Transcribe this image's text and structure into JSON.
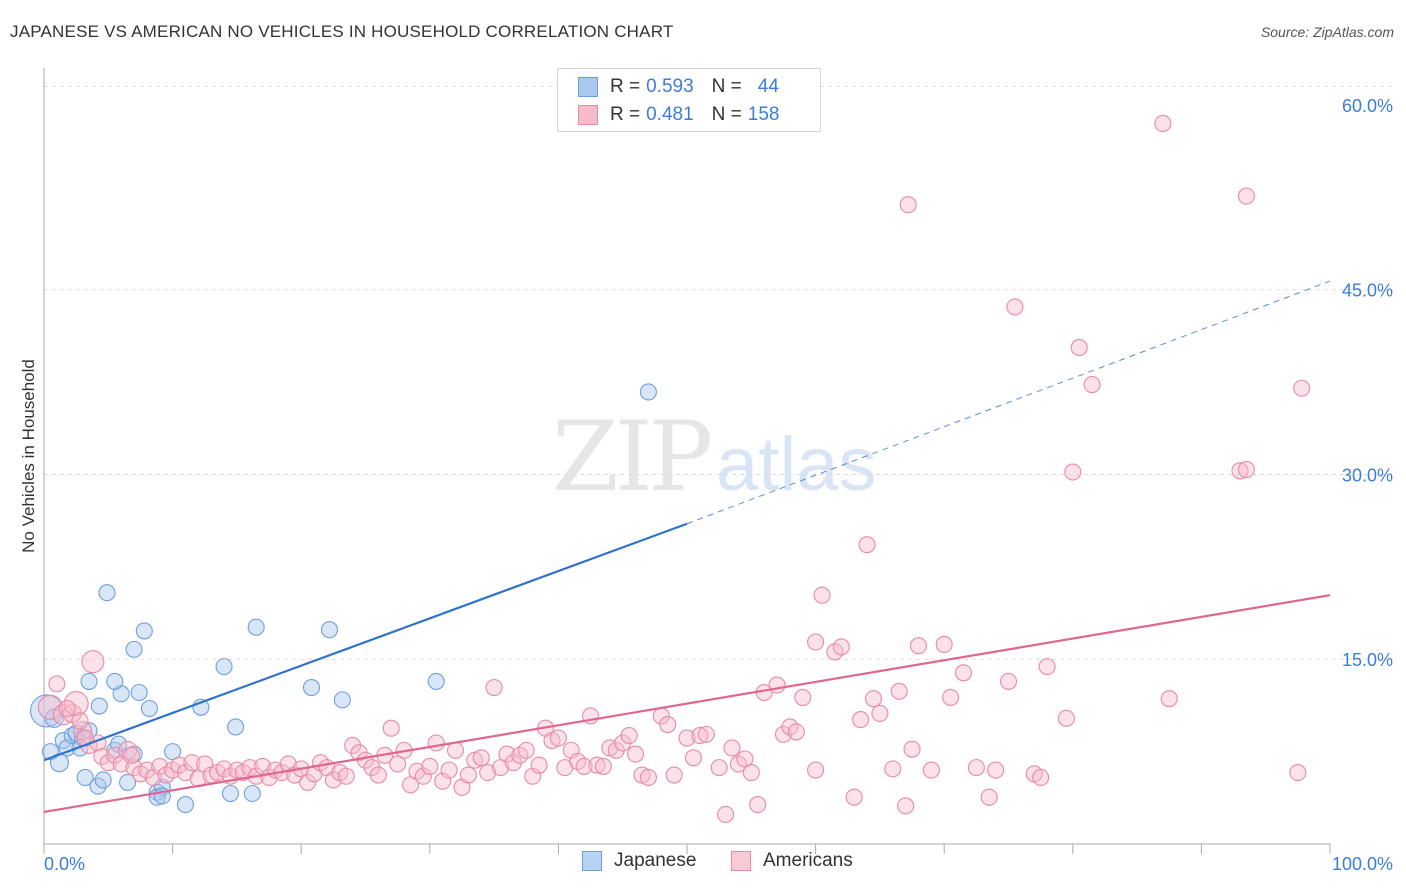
{
  "header": {
    "title": "JAPANESE VS AMERICAN NO VEHICLES IN HOUSEHOLD CORRELATION CHART",
    "source": "Source: ZipAtlas.com"
  },
  "watermark": {
    "zip": "ZIP",
    "atlas": "atlas"
  },
  "legend": {
    "rows": [
      {
        "r_label": "R =",
        "r_value": "0.593",
        "n_label": "N =",
        "n_value": "44",
        "color": "#aac8ee",
        "border": "#6f9fdb"
      },
      {
        "r_label": "R =",
        "r_value": "0.481",
        "n_label": "N =",
        "n_value": "158",
        "color": "#f7bccc",
        "border": "#e88aa6"
      }
    ]
  },
  "bottom_legend": {
    "items": [
      {
        "label": "Japanese",
        "color": "#b7d2f2",
        "border": "#6f9fdb"
      },
      {
        "label": "Americans",
        "color": "#f9c9d6",
        "border": "#e88aa6"
      }
    ]
  },
  "chart_data": {
    "type": "scatter",
    "title": "JAPANESE VS AMERICAN NO VEHICLES IN HOUSEHOLD CORRELATION CHART",
    "xlabel": "",
    "ylabel": "No Vehicles in Household",
    "xlim": [
      0,
      100
    ],
    "ylim": [
      0,
      63
    ],
    "x_tick_labels": [
      "0.0%",
      "100.0%"
    ],
    "y_ticks": [
      15,
      30,
      45,
      60
    ],
    "y_tick_labels": [
      "15.0%",
      "30.0%",
      "45.0%",
      "60.0%"
    ],
    "grid": true,
    "legend_position": "top-center",
    "series": [
      {
        "name": "Japanese",
        "color": "#6f9fdb",
        "fill": "#aac8ee",
        "trend": {
          "x1": 0,
          "y1": 6.8,
          "x2": 50,
          "y2": 26.0,
          "dash_to_x": 100,
          "dash_to_y": 45.7,
          "color": "#2f72cc"
        },
        "points": [
          [
            0.2,
            10.8,
            16
          ],
          [
            0.8,
            10.2,
            9
          ],
          [
            1.2,
            6.6,
            9
          ],
          [
            0.5,
            7.5,
            8
          ],
          [
            1.5,
            8.4,
            8
          ],
          [
            1.8,
            7.8,
            8
          ],
          [
            2.2,
            8.8,
            8
          ],
          [
            2.5,
            9.0,
            8
          ],
          [
            2.8,
            7.8,
            8
          ],
          [
            3.0,
            8.6,
            8
          ],
          [
            3.5,
            9.2,
            8
          ],
          [
            3.2,
            5.4,
            8
          ],
          [
            4.2,
            4.7,
            8
          ],
          [
            4.6,
            5.2,
            8
          ],
          [
            4.3,
            11.2,
            8
          ],
          [
            3.5,
            13.2,
            8
          ],
          [
            4.9,
            20.4,
            8
          ],
          [
            5.5,
            7.6,
            8
          ],
          [
            5.8,
            8.1,
            8
          ],
          [
            6.0,
            12.2,
            8
          ],
          [
            6.5,
            5.0,
            8
          ],
          [
            7.0,
            7.3,
            8
          ],
          [
            7.4,
            12.3,
            8
          ],
          [
            7.8,
            17.3,
            8
          ],
          [
            8.2,
            11.0,
            8
          ],
          [
            8.8,
            4.2,
            8
          ],
          [
            9.2,
            4.6,
            8
          ],
          [
            10.0,
            7.5,
            8
          ],
          [
            11.0,
            3.2,
            8
          ],
          [
            12.2,
            11.1,
            8
          ],
          [
            14.0,
            14.4,
            8
          ],
          [
            14.5,
            4.1,
            8
          ],
          [
            14.9,
            9.5,
            8
          ],
          [
            16.5,
            17.6,
            8
          ],
          [
            16.2,
            4.1,
            8
          ],
          [
            20.8,
            12.7,
            8
          ],
          [
            22.2,
            17.4,
            8
          ],
          [
            23.2,
            11.7,
            8
          ],
          [
            30.5,
            13.2,
            8
          ],
          [
            47.0,
            36.7,
            8
          ],
          [
            7.0,
            15.8,
            8
          ],
          [
            5.5,
            13.2,
            8
          ],
          [
            8.8,
            3.8,
            8
          ],
          [
            9.2,
            3.9,
            8
          ]
        ]
      },
      {
        "name": "Americans",
        "color": "#e88aa6",
        "fill": "#f7bccc",
        "trend": {
          "x1": 0,
          "y1": 2.6,
          "x2": 100,
          "y2": 20.2,
          "color": "#e06690"
        },
        "points": [
          [
            0.5,
            11.1,
            12
          ],
          [
            1.0,
            13.0,
            8
          ],
          [
            1.5,
            10.5,
            10
          ],
          [
            2.2,
            10.6,
            9
          ],
          [
            2.5,
            11.4,
            12
          ],
          [
            3.0,
            9.2,
            9
          ],
          [
            3.5,
            8.0,
            8
          ],
          [
            3.8,
            14.8,
            11
          ],
          [
            4.2,
            8.2,
            8
          ],
          [
            4.5,
            7.1,
            8
          ],
          [
            5.0,
            6.6,
            8
          ],
          [
            5.5,
            7.2,
            8
          ],
          [
            6.0,
            6.5,
            8
          ],
          [
            6.5,
            7.6,
            9
          ],
          [
            7.0,
            6.2,
            8
          ],
          [
            7.5,
            5.7,
            8
          ],
          [
            8.0,
            6.0,
            8
          ],
          [
            8.5,
            5.4,
            8
          ],
          [
            9.0,
            6.3,
            8
          ],
          [
            9.5,
            5.6,
            8
          ],
          [
            10.0,
            6.0,
            8
          ],
          [
            10.5,
            6.4,
            8
          ],
          [
            11.0,
            5.8,
            8
          ],
          [
            11.5,
            6.6,
            8
          ],
          [
            12.0,
            5.3,
            8
          ],
          [
            12.5,
            6.5,
            8
          ],
          [
            13.0,
            5.6,
            8
          ],
          [
            13.5,
            5.8,
            8
          ],
          [
            14.0,
            6.1,
            8
          ],
          [
            14.5,
            5.5,
            8
          ],
          [
            15.0,
            6.0,
            8
          ],
          [
            15.5,
            5.8,
            8
          ],
          [
            16.0,
            6.2,
            8
          ],
          [
            16.5,
            5.5,
            8
          ],
          [
            17.0,
            6.3,
            8
          ],
          [
            17.5,
            5.4,
            8
          ],
          [
            18.0,
            6.0,
            8
          ],
          [
            18.5,
            5.8,
            8
          ],
          [
            19.0,
            6.5,
            8
          ],
          [
            19.5,
            5.6,
            8
          ],
          [
            20.0,
            6.1,
            8
          ],
          [
            20.5,
            5.0,
            8
          ],
          [
            21.0,
            5.7,
            8
          ],
          [
            21.5,
            6.6,
            8
          ],
          [
            22.0,
            6.2,
            8
          ],
          [
            22.5,
            5.2,
            8
          ],
          [
            23.0,
            5.8,
            8
          ],
          [
            23.5,
            5.5,
            8
          ],
          [
            24.0,
            8.0,
            8
          ],
          [
            24.5,
            7.4,
            8
          ],
          [
            25.0,
            6.8,
            8
          ],
          [
            25.5,
            6.2,
            8
          ],
          [
            26.0,
            5.6,
            8
          ],
          [
            26.5,
            7.2,
            8
          ],
          [
            27.0,
            9.4,
            8
          ],
          [
            27.5,
            6.5,
            8
          ],
          [
            28.0,
            7.6,
            8
          ],
          [
            28.5,
            4.8,
            8
          ],
          [
            29.0,
            5.9,
            8
          ],
          [
            29.5,
            5.5,
            8
          ],
          [
            30.0,
            6.3,
            8
          ],
          [
            30.5,
            8.2,
            8
          ],
          [
            31.0,
            5.1,
            8
          ],
          [
            31.5,
            6.0,
            8
          ],
          [
            32.0,
            7.6,
            8
          ],
          [
            32.5,
            4.6,
            8
          ],
          [
            33.0,
            5.6,
            8
          ],
          [
            33.5,
            6.8,
            8
          ],
          [
            34.0,
            7.0,
            8
          ],
          [
            34.5,
            5.8,
            8
          ],
          [
            35.0,
            12.7,
            8
          ],
          [
            35.5,
            6.2,
            8
          ],
          [
            36.0,
            7.3,
            8
          ],
          [
            36.5,
            6.6,
            8
          ],
          [
            37.0,
            7.2,
            8
          ],
          [
            37.5,
            7.6,
            8
          ],
          [
            38.0,
            5.5,
            8
          ],
          [
            38.5,
            6.4,
            8
          ],
          [
            39.0,
            9.4,
            8
          ],
          [
            39.5,
            8.4,
            8
          ],
          [
            40.0,
            8.6,
            8
          ],
          [
            40.5,
            6.2,
            8
          ],
          [
            41.0,
            7.6,
            8
          ],
          [
            41.5,
            6.7,
            8
          ],
          [
            42.0,
            6.3,
            8
          ],
          [
            42.5,
            10.4,
            8
          ],
          [
            43.0,
            6.4,
            8
          ],
          [
            43.5,
            6.3,
            8
          ],
          [
            44.0,
            7.8,
            8
          ],
          [
            44.5,
            7.6,
            8
          ],
          [
            45.0,
            8.2,
            8
          ],
          [
            45.5,
            8.8,
            8
          ],
          [
            46.0,
            7.3,
            8
          ],
          [
            46.5,
            5.6,
            8
          ],
          [
            47.0,
            5.4,
            8
          ],
          [
            48.0,
            10.4,
            8
          ],
          [
            48.5,
            9.7,
            8
          ],
          [
            49.0,
            5.6,
            8
          ],
          [
            50.0,
            8.6,
            8
          ],
          [
            50.5,
            7.0,
            8
          ],
          [
            51.0,
            8.8,
            8
          ],
          [
            51.5,
            8.9,
            8
          ],
          [
            52.5,
            6.2,
            8
          ],
          [
            53.0,
            2.4,
            8
          ],
          [
            53.5,
            7.8,
            8
          ],
          [
            54.0,
            6.5,
            8
          ],
          [
            54.5,
            6.9,
            8
          ],
          [
            55.0,
            5.8,
            8
          ],
          [
            55.5,
            3.2,
            8
          ],
          [
            56.0,
            12.3,
            8
          ],
          [
            57.0,
            12.9,
            8
          ],
          [
            57.5,
            8.9,
            8
          ],
          [
            58.0,
            9.5,
            8
          ],
          [
            58.5,
            9.1,
            8
          ],
          [
            59.0,
            11.9,
            8
          ],
          [
            60.0,
            6.0,
            8
          ],
          [
            60.5,
            20.2,
            8
          ],
          [
            60.0,
            16.4,
            8
          ],
          [
            61.5,
            15.6,
            8
          ],
          [
            62.0,
            16.0,
            8
          ],
          [
            63.0,
            3.8,
            8
          ],
          [
            63.5,
            10.1,
            8
          ],
          [
            64.0,
            24.3,
            8
          ],
          [
            64.5,
            11.8,
            8
          ],
          [
            65.0,
            10.6,
            8
          ],
          [
            66.0,
            6.1,
            8
          ],
          [
            66.5,
            12.4,
            8
          ],
          [
            67.0,
            3.1,
            8
          ],
          [
            67.5,
            7.7,
            8
          ],
          [
            67.2,
            51.9,
            8
          ],
          [
            68.0,
            16.1,
            8
          ],
          [
            69.0,
            6.0,
            8
          ],
          [
            70.0,
            16.2,
            8
          ],
          [
            70.5,
            11.9,
            8
          ],
          [
            71.5,
            13.9,
            8
          ],
          [
            72.5,
            6.2,
            8
          ],
          [
            73.5,
            3.8,
            8
          ],
          [
            74.0,
            6.0,
            8
          ],
          [
            75.0,
            13.2,
            8
          ],
          [
            75.5,
            43.6,
            8
          ],
          [
            77.0,
            5.7,
            8
          ],
          [
            77.5,
            5.4,
            8
          ],
          [
            78.0,
            14.4,
            8
          ],
          [
            79.5,
            10.2,
            8
          ],
          [
            80.0,
            30.2,
            8
          ],
          [
            80.5,
            40.3,
            8
          ],
          [
            81.5,
            37.3,
            8
          ],
          [
            87.0,
            58.5,
            8
          ],
          [
            87.5,
            11.8,
            8
          ],
          [
            93.0,
            30.3,
            8
          ],
          [
            93.5,
            52.6,
            8
          ],
          [
            97.5,
            5.8,
            8
          ],
          [
            97.8,
            37.0,
            8
          ],
          [
            93.5,
            30.4,
            8
          ],
          [
            2.8,
            10.0,
            8
          ],
          [
            3.2,
            8.6,
            8
          ],
          [
            1.8,
            11.0,
            8
          ],
          [
            6.8,
            7.2,
            8
          ]
        ]
      }
    ]
  }
}
